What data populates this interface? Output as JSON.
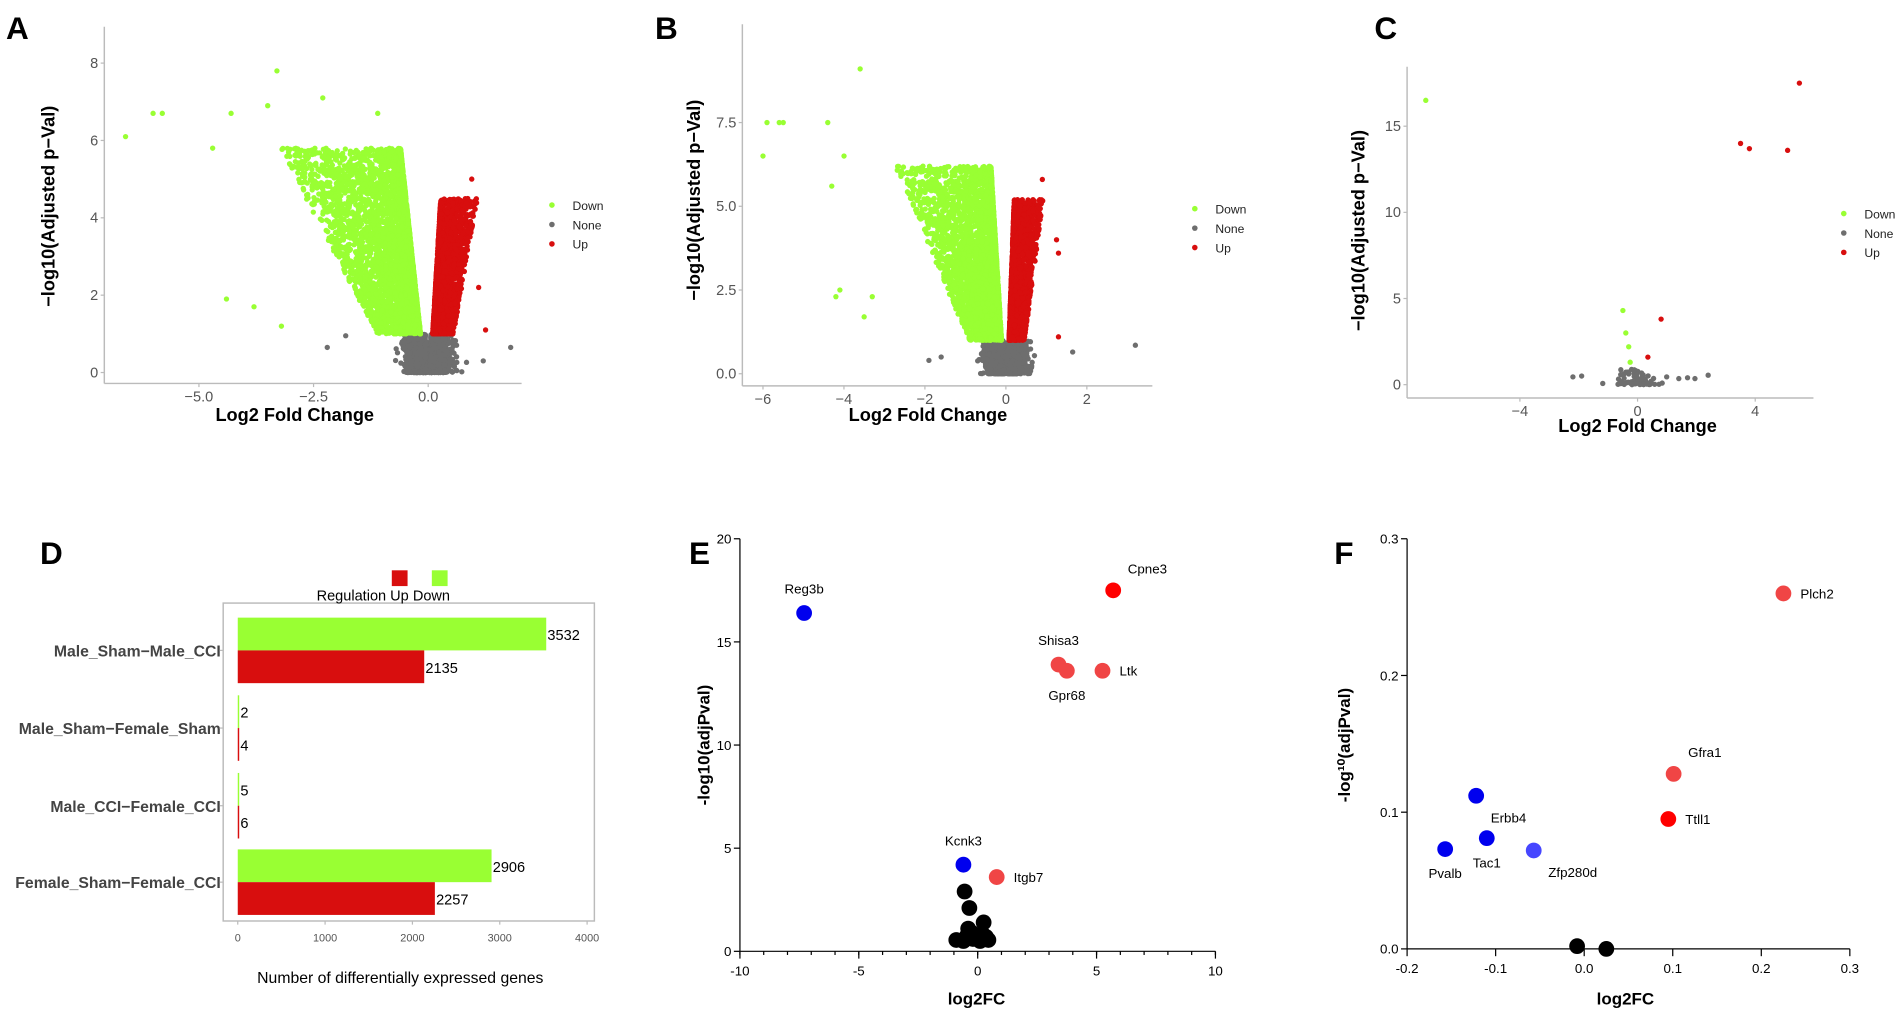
{
  "colors": {
    "down": "#99ff33",
    "none": "#6e6e6e",
    "up": "#d80e0e",
    "blue": "#0000ee",
    "light_blue": "#4646ff",
    "red": "#ff0000",
    "light_red": "#f04545",
    "black": "#000000",
    "axis": "#bbbbbb"
  },
  "chart_data": [
    {
      "panel": "A",
      "type": "scatter",
      "title": "",
      "xlabel": "Log2 Fold Change",
      "ylabel": "−log10(Adjusted p−Val)",
      "xlim": [
        -7.1,
        2.1
      ],
      "ylim": [
        -0.3,
        8.5
      ],
      "xticks": [
        {
          "v": -5,
          "label": "−5.0"
        },
        {
          "v": -2.5,
          "label": "−2.5"
        },
        {
          "v": 0,
          "label": "0.0"
        }
      ],
      "yticks": [
        {
          "v": 0,
          "label": "0"
        },
        {
          "v": 2,
          "label": "2"
        },
        {
          "v": 4,
          "label": "4"
        },
        {
          "v": 6,
          "label": "6"
        },
        {
          "v": 8,
          "label": "8"
        }
      ],
      "legend": {
        "position": "right",
        "entries": [
          "Down",
          "None",
          "Up"
        ]
      },
      "counts": {
        "down": 3532,
        "up": 2135
      },
      "threshold_y": 1,
      "outliers": [
        {
          "x": -6.6,
          "y": 6.1,
          "group": "down"
        },
        {
          "x": -6.0,
          "y": 6.7,
          "group": "down"
        },
        {
          "x": -5.8,
          "y": 6.7,
          "group": "down"
        },
        {
          "x": -4.7,
          "y": 5.8,
          "group": "down"
        },
        {
          "x": -4.4,
          "y": 1.9,
          "group": "down"
        },
        {
          "x": -3.8,
          "y": 1.7,
          "group": "down"
        },
        {
          "x": -3.3,
          "y": 7.8,
          "group": "down"
        },
        {
          "x": -3.2,
          "y": 1.2,
          "group": "down"
        },
        {
          "x": -2.3,
          "y": 7.1,
          "group": "down"
        },
        {
          "x": -4.3,
          "y": 6.7,
          "group": "down"
        },
        {
          "x": -3.5,
          "y": 6.9,
          "group": "down"
        },
        {
          "x": -1.1,
          "y": 6.7,
          "group": "down"
        },
        {
          "x": 0.95,
          "y": 5.0,
          "group": "up"
        },
        {
          "x": 1.25,
          "y": 1.1,
          "group": "up"
        },
        {
          "x": 1.1,
          "y": 2.2,
          "group": "up"
        },
        {
          "x": -2.2,
          "y": 0.65,
          "group": "none"
        },
        {
          "x": -1.8,
          "y": 0.95,
          "group": "none"
        },
        {
          "x": 1.8,
          "y": 0.65,
          "group": "none"
        },
        {
          "x": 1.2,
          "y": 0.3,
          "group": "none"
        }
      ]
    },
    {
      "panel": "B",
      "type": "scatter",
      "title": "",
      "xlabel": "Log2 Fold Change",
      "ylabel": "−log10(Adjusted p−Val)",
      "xlim": [
        -6.5,
        3.6
      ],
      "ylim": [
        -0.4,
        10.5
      ],
      "xticks": [
        {
          "v": -6,
          "label": "−6"
        },
        {
          "v": -4,
          "label": "−4"
        },
        {
          "v": -2,
          "label": "−2"
        },
        {
          "v": 0,
          "label": "0"
        },
        {
          "v": 2,
          "label": "2"
        }
      ],
      "yticks": [
        {
          "v": 0,
          "label": "0.0"
        },
        {
          "v": 2.5,
          "label": "2.5"
        },
        {
          "v": 5,
          "label": "5.0"
        },
        {
          "v": 7.5,
          "label": "7.5"
        }
      ],
      "legend": {
        "position": "right",
        "entries": [
          "Down",
          "None",
          "Up"
        ]
      },
      "counts": {
        "down": 2906,
        "up": 2257
      },
      "threshold_y": 1,
      "outliers": [
        {
          "x": -6.0,
          "y": 6.5,
          "group": "down"
        },
        {
          "x": -5.9,
          "y": 7.5,
          "group": "down"
        },
        {
          "x": -5.6,
          "y": 7.5,
          "group": "down"
        },
        {
          "x": -5.5,
          "y": 7.5,
          "group": "down"
        },
        {
          "x": -4.4,
          "y": 7.5,
          "group": "down"
        },
        {
          "x": -4.3,
          "y": 5.6,
          "group": "down"
        },
        {
          "x": -4.2,
          "y": 2.3,
          "group": "down"
        },
        {
          "x": -4.1,
          "y": 2.5,
          "group": "down"
        },
        {
          "x": -3.6,
          "y": 9.1,
          "group": "down"
        },
        {
          "x": -3.5,
          "y": 1.7,
          "group": "down"
        },
        {
          "x": -3.3,
          "y": 2.3,
          "group": "down"
        },
        {
          "x": -4.0,
          "y": 6.5,
          "group": "down"
        },
        {
          "x": 1.25,
          "y": 4.0,
          "group": "up"
        },
        {
          "x": 1.3,
          "y": 3.6,
          "group": "up"
        },
        {
          "x": 1.3,
          "y": 1.1,
          "group": "up"
        },
        {
          "x": 0.9,
          "y": 5.8,
          "group": "up"
        },
        {
          "x": 3.2,
          "y": 0.85,
          "group": "none"
        },
        {
          "x": 1.65,
          "y": 0.65,
          "group": "none"
        },
        {
          "x": -1.9,
          "y": 0.4,
          "group": "none"
        },
        {
          "x": -1.6,
          "y": 0.5,
          "group": "none"
        }
      ]
    },
    {
      "panel": "C",
      "type": "scatter",
      "title": "",
      "xlabel": "Log2 Fold Change",
      "ylabel": "−log10(Adjusted p−Val)",
      "xlim": [
        -7.8,
        6.0
      ],
      "ylim": [
        -0.8,
        18.5
      ],
      "xticks": [
        {
          "v": -4,
          "label": "−4"
        },
        {
          "v": 0,
          "label": "0"
        },
        {
          "v": 4,
          "label": "4"
        }
      ],
      "yticks": [
        {
          "v": 0,
          "label": "0"
        },
        {
          "v": 5,
          "label": "5"
        },
        {
          "v": 10,
          "label": "10"
        },
        {
          "v": 15,
          "label": "15"
        }
      ],
      "legend": {
        "position": "right",
        "entries": [
          "Down",
          "None",
          "Up"
        ]
      },
      "counts": {
        "down": 5,
        "up": 6
      },
      "threshold_y": 1,
      "outliers": [
        {
          "x": -7.2,
          "y": 16.5,
          "group": "down"
        },
        {
          "x": -0.5,
          "y": 4.3,
          "group": "down"
        },
        {
          "x": -0.4,
          "y": 3.0,
          "group": "down"
        },
        {
          "x": -0.3,
          "y": 2.2,
          "group": "down"
        },
        {
          "x": -0.25,
          "y": 1.3,
          "group": "down"
        },
        {
          "x": 5.5,
          "y": 17.5,
          "group": "up"
        },
        {
          "x": 3.5,
          "y": 14.0,
          "group": "up"
        },
        {
          "x": 3.8,
          "y": 13.7,
          "group": "up"
        },
        {
          "x": 5.1,
          "y": 13.6,
          "group": "up"
        },
        {
          "x": 0.8,
          "y": 3.8,
          "group": "up"
        },
        {
          "x": 0.35,
          "y": 1.6,
          "group": "up"
        },
        {
          "x": -2.2,
          "y": 0.45,
          "group": "none"
        },
        {
          "x": -1.9,
          "y": 0.5,
          "group": "none"
        },
        {
          "x": 1.4,
          "y": 0.35,
          "group": "none"
        },
        {
          "x": 1.7,
          "y": 0.4,
          "group": "none"
        },
        {
          "x": 1.95,
          "y": 0.35,
          "group": "none"
        },
        {
          "x": 2.4,
          "y": 0.55,
          "group": "none"
        }
      ]
    },
    {
      "panel": "D",
      "type": "bar",
      "orientation": "horizontal",
      "title": "",
      "xlabel": "Number of differentially expressed genes",
      "ylabel": "",
      "xlim": [
        0,
        4200
      ],
      "xticks": [
        {
          "v": 0,
          "label": "0"
        },
        {
          "v": 1000,
          "label": "1000"
        },
        {
          "v": 2000,
          "label": "2000"
        },
        {
          "v": 3000,
          "label": "3000"
        },
        {
          "v": 4000,
          "label": "4000"
        }
      ],
      "categories": [
        "Male_Sham−Male_CCI",
        "Male_Sham−Female_Sham",
        "Male_CCI−Female_CCI",
        "Female_Sham−Female_CCI"
      ],
      "series": [
        {
          "name": "Down",
          "values": [
            3532,
            2,
            5,
            2906
          ]
        },
        {
          "name": "Up",
          "values": [
            2135,
            4,
            6,
            2257
          ]
        }
      ],
      "legend": {
        "position": "top",
        "title": "Regulation",
        "entries": [
          "Up",
          "Down"
        ]
      }
    },
    {
      "panel": "E",
      "type": "scatter",
      "title": "",
      "xlabel": "log2FC",
      "ylabel": "-log10(adjPval)",
      "xlim": [
        -10,
        10
      ],
      "ylim": [
        0,
        20
      ],
      "xticks": [
        {
          "v": -10,
          "label": "-10"
        },
        {
          "v": -5,
          "label": "-5"
        },
        {
          "v": 0,
          "label": "0"
        },
        {
          "v": 5,
          "label": "5"
        },
        {
          "v": 10,
          "label": "10"
        }
      ],
      "yticks": [
        {
          "v": 0,
          "label": "0"
        },
        {
          "v": 5,
          "label": "5"
        },
        {
          "v": 10,
          "label": "10"
        },
        {
          "v": 15,
          "label": "15"
        },
        {
          "v": 20,
          "label": "20"
        }
      ],
      "points": [
        {
          "gene": "Reg3b",
          "x": -7.3,
          "y": 16.4,
          "color": "blue",
          "label_pos": "above"
        },
        {
          "gene": "Cpne3",
          "x": 5.7,
          "y": 17.5,
          "color": "red",
          "label_pos": "above-right"
        },
        {
          "gene": "Shisa3",
          "x": 3.4,
          "y": 13.9,
          "color": "light_red",
          "label_pos": "above"
        },
        {
          "gene": "Gpr68",
          "x": 3.75,
          "y": 13.6,
          "color": "light_red",
          "label_pos": "below"
        },
        {
          "gene": "Ltk",
          "x": 5.25,
          "y": 13.6,
          "color": "light_red",
          "label_pos": "right"
        },
        {
          "gene": "Kcnk3",
          "x": -0.6,
          "y": 4.2,
          "color": "blue",
          "label_pos": "above"
        },
        {
          "gene": "Itgb7",
          "x": 0.8,
          "y": 3.6,
          "color": "light_red",
          "label_pos": "right"
        },
        {
          "gene": "",
          "x": -0.55,
          "y": 2.9,
          "color": "black"
        },
        {
          "gene": "",
          "x": -0.35,
          "y": 2.1,
          "color": "black"
        },
        {
          "gene": "",
          "x": -0.4,
          "y": 1.1,
          "color": "black"
        },
        {
          "gene": "",
          "x": -0.25,
          "y": 0.9,
          "color": "black"
        },
        {
          "gene": "",
          "x": 0.25,
          "y": 1.4,
          "color": "black"
        },
        {
          "gene": "",
          "x": -0.9,
          "y": 0.55,
          "color": "black"
        },
        {
          "gene": "",
          "x": -0.6,
          "y": 0.5,
          "color": "black"
        },
        {
          "gene": "",
          "x": -0.2,
          "y": 0.6,
          "color": "black"
        },
        {
          "gene": "",
          "x": 0.1,
          "y": 0.5,
          "color": "black"
        },
        {
          "gene": "",
          "x": 0.35,
          "y": 0.7,
          "color": "black"
        },
        {
          "gene": "",
          "x": 0.45,
          "y": 0.55,
          "color": "black"
        },
        {
          "gene": "",
          "x": 0.0,
          "y": 0.6,
          "color": "black"
        },
        {
          "gene": "",
          "x": -0.45,
          "y": 0.75,
          "color": "black"
        },
        {
          "gene": "",
          "x": 0.2,
          "y": 0.85,
          "color": "black"
        }
      ]
    },
    {
      "panel": "F",
      "type": "scatter",
      "title": "",
      "xlabel": "log2FC",
      "ylabel": "-log¹⁰(adjPval)",
      "xlim": [
        -0.2,
        0.3
      ],
      "ylim": [
        0,
        0.3
      ],
      "xticks": [
        {
          "v": -0.2,
          "label": "-0.2"
        },
        {
          "v": -0.1,
          "label": "-0.1"
        },
        {
          "v": 0,
          "label": "0.0"
        },
        {
          "v": 0.1,
          "label": "0.1"
        },
        {
          "v": 0.2,
          "label": "0.2"
        },
        {
          "v": 0.3,
          "label": "0.3"
        }
      ],
      "yticks": [
        {
          "v": 0,
          "label": "0.0"
        },
        {
          "v": 0.1,
          "label": "0.1"
        },
        {
          "v": 0.2,
          "label": "0.2"
        },
        {
          "v": 0.3,
          "label": "0.3"
        }
      ],
      "points": [
        {
          "gene": "Plch2",
          "x": 0.225,
          "y": 0.26,
          "color": "light_red",
          "label_pos": "right"
        },
        {
          "gene": "Gfra1",
          "x": 0.101,
          "y": 0.128,
          "color": "light_red",
          "label_pos": "above-right"
        },
        {
          "gene": "Ttll1",
          "x": 0.095,
          "y": 0.095,
          "color": "red",
          "label_pos": "right"
        },
        {
          "gene": "Erbb4",
          "x": -0.122,
          "y": 0.112,
          "color": "blue",
          "label_pos": "below-right"
        },
        {
          "gene": "Tac1",
          "x": -0.11,
          "y": 0.081,
          "color": "blue",
          "label_pos": "below"
        },
        {
          "gene": "Pvalb",
          "x": -0.157,
          "y": 0.073,
          "color": "blue",
          "label_pos": "below"
        },
        {
          "gene": "Zfp280d",
          "x": -0.057,
          "y": 0.072,
          "color": "light_blue",
          "label_pos": "below-right"
        },
        {
          "gene": "",
          "x": -0.008,
          "y": 0.002,
          "color": "black"
        },
        {
          "gene": "",
          "x": 0.025,
          "y": 0.0,
          "color": "black"
        }
      ]
    }
  ]
}
